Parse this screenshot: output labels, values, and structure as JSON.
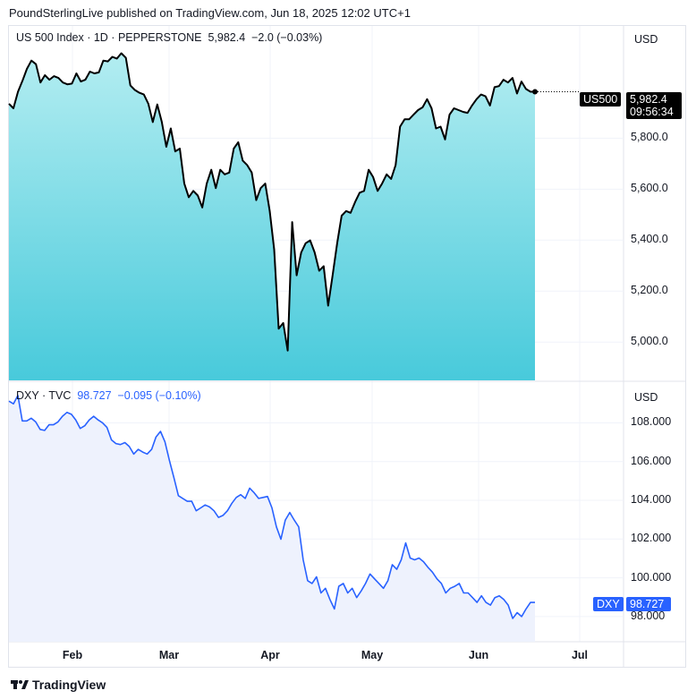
{
  "header": {
    "published": "PoundSterlingLive published on TradingView.com, Jun 18, 2025 12:02 UTC+1"
  },
  "footer": {
    "brand": "TradingView"
  },
  "chart_data": [
    {
      "type": "area",
      "title": "US 500 Index · 1D · PEPPERSTONE",
      "last": "5,982.4",
      "change": "−2.0 (−0.03%)",
      "currency": "USD",
      "symbol_label": "US500",
      "price_label": "5,982.4",
      "countdown": "09:56:34",
      "line_color": "#000000",
      "fill_top": "#b3edf1",
      "fill_bottom": "#48cadb",
      "ylim": [
        4850,
        6240
      ],
      "yticks": [
        "5,800.0",
        "5,600.0",
        "5,400.0",
        "5,200.0",
        "5,000.0"
      ],
      "ytick_values": [
        5800,
        5600,
        5400,
        5200,
        5000
      ],
      "values": [
        5935,
        5917,
        5982,
        6025,
        6072,
        6104,
        6090,
        6018,
        6047,
        6029,
        6043,
        6036,
        6018,
        6011,
        6014,
        6054,
        6022,
        6029,
        6061,
        6054,
        6058,
        6104,
        6101,
        6119,
        6112,
        6133,
        6115,
        6007,
        5989,
        5978,
        5971,
        5935,
        5863,
        5932,
        5863,
        5766,
        5838,
        5748,
        5759,
        5622,
        5568,
        5593,
        5575,
        5528,
        5622,
        5676,
        5604,
        5676,
        5658,
        5665,
        5759,
        5784,
        5712,
        5694,
        5665,
        5557,
        5604,
        5622,
        5514,
        5363,
        5053,
        5075,
        4967,
        5471,
        5262,
        5352,
        5388,
        5399,
        5352,
        5280,
        5298,
        5143,
        5262,
        5388,
        5496,
        5514,
        5507,
        5550,
        5586,
        5593,
        5676,
        5647,
        5593,
        5622,
        5658,
        5640,
        5694,
        5845,
        5874,
        5874,
        5892,
        5910,
        5921,
        5953,
        5917,
        5838,
        5845,
        5795,
        5892,
        5917,
        5910,
        5903,
        5899,
        5928,
        5953,
        5971,
        5964,
        5928,
        6000,
        6004,
        6029,
        6018,
        6036,
        5975,
        6022,
        5993,
        5982,
        5982
      ]
    },
    {
      "type": "area",
      "title": "DXY · TVC",
      "last": "98.727",
      "change": "−0.095 (−0.10%)",
      "currency": "USD",
      "symbol_label": "DXY",
      "price_label": "98.727",
      "line_color": "#2962ff",
      "fill": "#eef2fd",
      "ylim": [
        96.7,
        110.1
      ],
      "yticks": [
        "108.000",
        "106.000",
        "104.000",
        "102.000",
        "100.000",
        "98.000"
      ],
      "ytick_values": [
        108,
        106,
        104,
        102,
        100,
        98
      ],
      "values": [
        109.12,
        108.98,
        109.41,
        108.1,
        108.1,
        108.24,
        108.05,
        107.66,
        107.61,
        107.9,
        107.9,
        108.05,
        108.34,
        108.54,
        108.44,
        108.15,
        107.71,
        107.85,
        108.15,
        108.34,
        108.15,
        108.0,
        107.76,
        107.12,
        106.93,
        106.88,
        106.98,
        106.78,
        106.39,
        106.63,
        106.49,
        106.39,
        106.63,
        107.27,
        107.56,
        107.02,
        106.05,
        105.17,
        104.24,
        104.1,
        103.95,
        103.95,
        103.46,
        103.61,
        103.76,
        103.66,
        103.46,
        103.12,
        103.22,
        103.46,
        103.85,
        104.15,
        104.29,
        104.1,
        104.63,
        104.39,
        104.1,
        104.15,
        104.2,
        103.61,
        102.63,
        101.99,
        102.98,
        103.37,
        102.98,
        102.63,
        100.93,
        99.85,
        99.71,
        100.05,
        99.22,
        99.46,
        98.88,
        98.39,
        99.56,
        99.71,
        99.22,
        99.46,
        98.98,
        99.32,
        99.71,
        100.2,
        99.95,
        99.71,
        99.46,
        99.85,
        100.68,
        100.44,
        100.93,
        101.8,
        101.02,
        100.93,
        101.02,
        100.83,
        100.54,
        100.29,
        99.95,
        99.71,
        99.22,
        99.46,
        99.56,
        99.71,
        99.22,
        99.22,
        98.98,
        98.73,
        99.07,
        98.73,
        98.59,
        98.98,
        99.07,
        98.88,
        98.59,
        97.9,
        98.2,
        98.0,
        98.39,
        98.73,
        98.73
      ]
    }
  ],
  "x_axis": {
    "months": [
      "Feb",
      "Mar",
      "Apr",
      "May",
      "Jun",
      "Jul"
    ]
  }
}
